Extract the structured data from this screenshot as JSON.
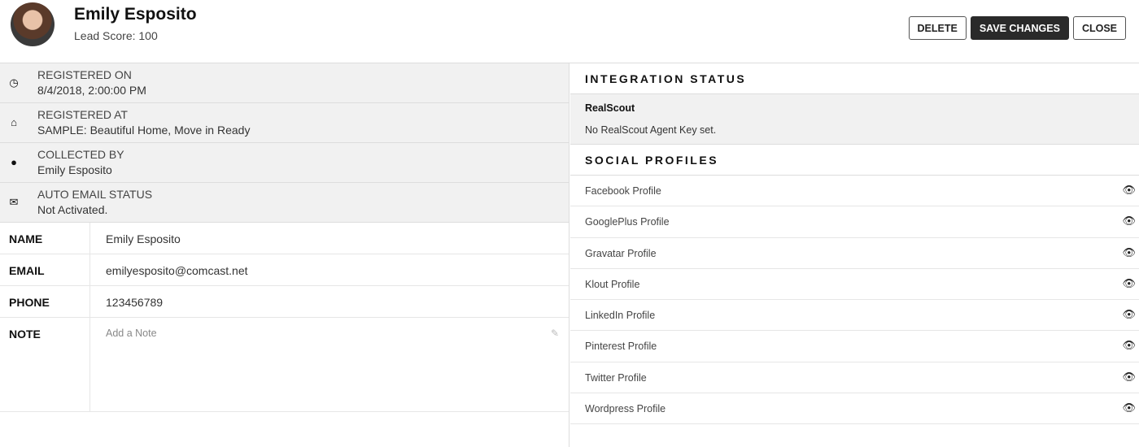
{
  "header": {
    "name": "Emily Esposito",
    "lead_score": "Lead Score: 100",
    "buttons": {
      "delete": "DELETE",
      "save": "SAVE CHANGES",
      "close": "CLOSE"
    }
  },
  "info": [
    {
      "icon": "clock-icon",
      "glyph": "◷",
      "label": "REGISTERED ON",
      "value": "8/4/2018, 2:00:00 PM"
    },
    {
      "icon": "home-icon",
      "glyph": "⌂",
      "label": "REGISTERED AT",
      "value": "SAMPLE: Beautiful Home, Move in Ready"
    },
    {
      "icon": "user-icon",
      "glyph": "●",
      "label": "COLLECTED BY",
      "value": "Emily Esposito"
    },
    {
      "icon": "envelope-icon",
      "glyph": "✉",
      "label": "AUTO EMAIL STATUS",
      "value": "Not Activated."
    }
  ],
  "fields": [
    {
      "label": "NAME",
      "value": "Emily Esposito"
    },
    {
      "label": "EMAIL",
      "value": "emilyesposito@comcast.net"
    },
    {
      "label": "PHONE",
      "value": "123456789"
    }
  ],
  "note": {
    "label": "NOTE",
    "placeholder": "Add a Note"
  },
  "integration": {
    "title": "INTEGRATION STATUS",
    "name": "RealScout",
    "status": "No RealScout Agent Key set."
  },
  "social": {
    "title": "SOCIAL PROFILES",
    "profiles": [
      "Facebook Profile",
      "GooglePlus Profile",
      "Gravatar Profile",
      "Klout Profile",
      "LinkedIn Profile",
      "Pinterest Profile",
      "Twitter Profile",
      "Wordpress Profile"
    ]
  }
}
